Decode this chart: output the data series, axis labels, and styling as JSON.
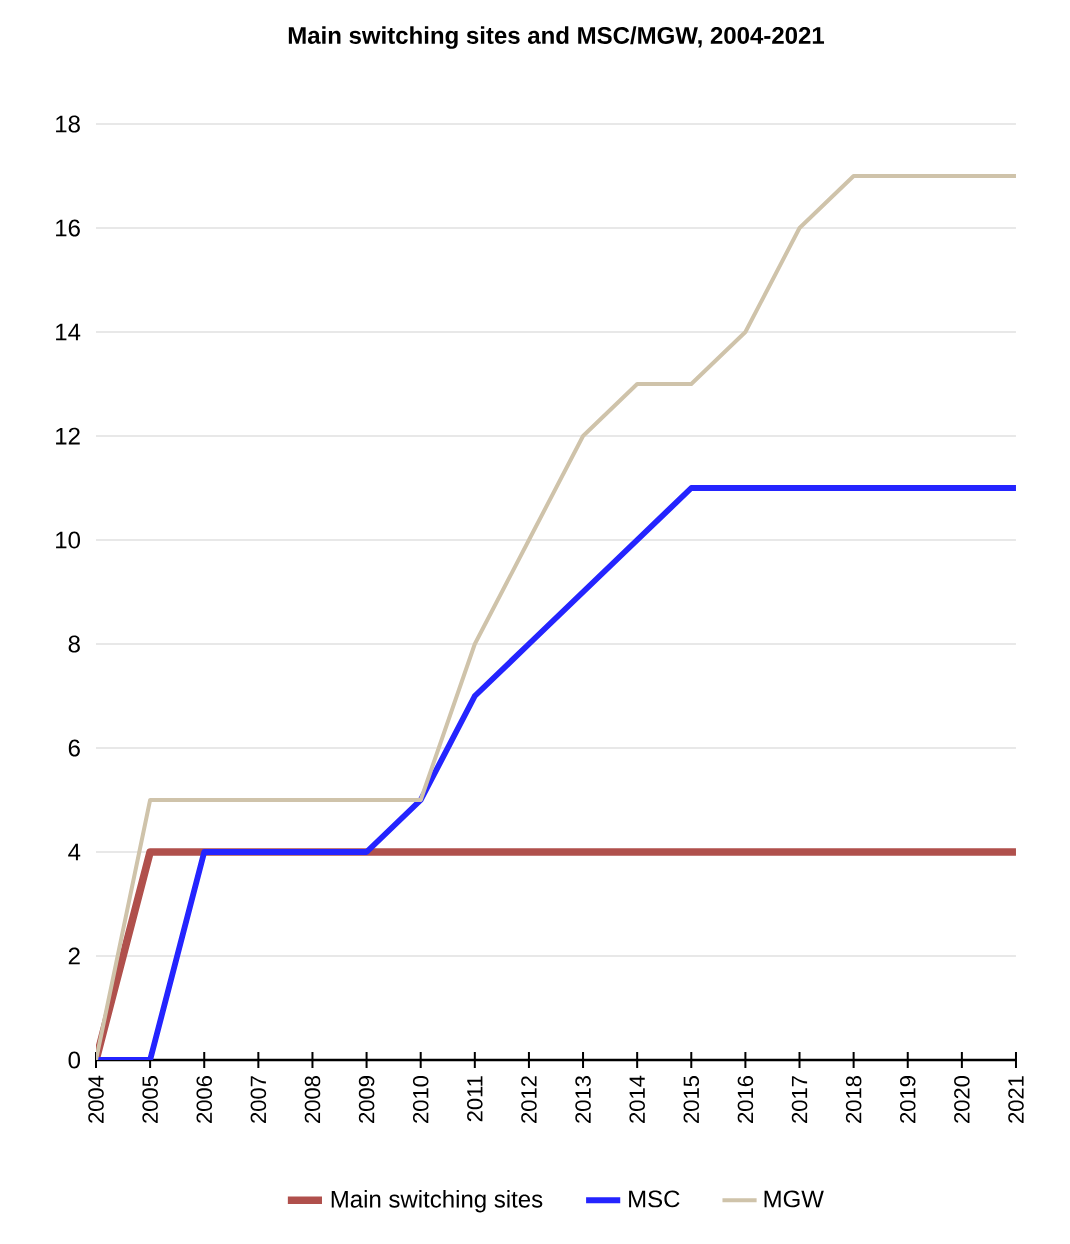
{
  "chart_data": {
    "type": "line",
    "title": "Main switching sites and MSC/MGW, 2004-2021",
    "x": [
      2004,
      2005,
      2006,
      2007,
      2008,
      2009,
      2010,
      2011,
      2012,
      2013,
      2014,
      2015,
      2016,
      2017,
      2018,
      2019,
      2020,
      2021
    ],
    "series": [
      {
        "name": "Main switching sites",
        "color": "#b0504c",
        "values": [
          0,
          4,
          4,
          4,
          4,
          4,
          4,
          4,
          4,
          4,
          4,
          4,
          4,
          4,
          4,
          4,
          4,
          4
        ]
      },
      {
        "name": "MSC",
        "color": "#2424ff",
        "values": [
          0,
          0,
          4,
          4,
          4,
          4,
          5,
          7,
          8,
          9,
          10,
          11,
          11,
          11,
          11,
          11,
          11,
          11
        ]
      },
      {
        "name": "MGW",
        "color": "#cfc3aa",
        "values": [
          0,
          5,
          5,
          5,
          5,
          5,
          5,
          8,
          10,
          12,
          13,
          13,
          14,
          16,
          17,
          17,
          17,
          17
        ]
      }
    ],
    "xlim": [
      2004,
      2021
    ],
    "xticks": [
      2004,
      2005,
      2006,
      2007,
      2008,
      2009,
      2010,
      2011,
      2012,
      2013,
      2014,
      2015,
      2016,
      2017,
      2018,
      2019,
      2020,
      2021
    ],
    "ylim": [
      0,
      18
    ],
    "yticks": [
      0,
      2,
      4,
      6,
      8,
      10,
      12,
      14,
      16,
      18
    ],
    "grid": "y",
    "legend": "bottom",
    "marker": "none",
    "line_style": "solid"
  }
}
